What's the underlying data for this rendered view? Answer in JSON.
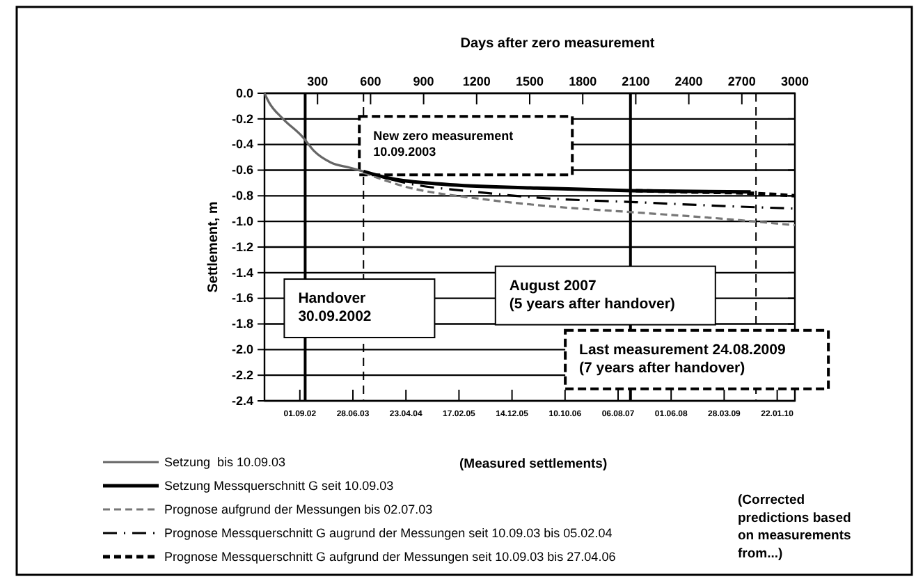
{
  "chart_data": {
    "type": "line",
    "xlabel": "Days after zero measurement",
    "ylabel": "Settlement, m",
    "xlim": [
      0,
      3000
    ],
    "x2lim": [
      "2002-02-13",
      "2010-05-02"
    ],
    "xticks": [
      300,
      600,
      900,
      1200,
      1500,
      1800,
      2100,
      2400,
      2700,
      3000
    ],
    "x2ticks": [
      {
        "value": "2002-09-01",
        "label": "01.09.02"
      },
      {
        "value": "2003-06-28",
        "label": "28.06.03"
      },
      {
        "value": "2004-04-23",
        "label": "23.04.04"
      },
      {
        "value": "2005-02-17",
        "label": "17.02.05"
      },
      {
        "value": "2005-12-14",
        "label": "14.12.05"
      },
      {
        "value": "2006-10-10",
        "label": "10.10.06"
      },
      {
        "value": "2007-08-06",
        "label": "06.08.07"
      },
      {
        "value": "2008-06-01",
        "label": "01.06.08"
      },
      {
        "value": "2009-03-28",
        "label": "28.03.09"
      },
      {
        "value": "2010-01-22",
        "label": "22.01.10"
      }
    ],
    "ylim": [
      -2.4,
      0
    ],
    "yticks": [
      {
        "value": 0,
        "label": "0.0"
      },
      {
        "value": -0.2,
        "label": "-0.2"
      },
      {
        "value": -0.4,
        "label": "-0.4"
      },
      {
        "value": -0.6,
        "label": "-0.6"
      },
      {
        "value": -0.8,
        "label": "-0.8"
      },
      {
        "value": -1.0,
        "label": "-1.0"
      },
      {
        "value": -1.2,
        "label": "-1.2"
      },
      {
        "value": -1.4,
        "label": "-1.4"
      },
      {
        "value": -1.6,
        "label": "-1.6"
      },
      {
        "value": -1.8,
        "label": "-1.8"
      },
      {
        "value": -2.0,
        "label": "-2.0"
      },
      {
        "value": -2.2,
        "label": "-2.2"
      },
      {
        "value": -2.4,
        "label": "-2.4"
      }
    ],
    "grid": "y",
    "legend": "bottom",
    "marker": "none",
    "series": [
      {
        "name": "Setzung  bis 10.09.03",
        "color": "#666666",
        "line_style": "solid",
        "x": [
          0,
          25,
          105,
          215,
          280,
          375,
          480,
          560
        ],
        "values": [
          0,
          -0.07,
          -0.2,
          -0.34,
          -0.45,
          -0.54,
          -0.58,
          -0.61
        ]
      },
      {
        "name": "Setzung Messquerschnitt G seit 10.09.03",
        "color": "#000000",
        "line_style": "solid",
        "x": [
          560,
          694,
          1014,
          1540,
          2075,
          2750
        ],
        "values": [
          -0.61,
          -0.66,
          -0.71,
          -0.74,
          -0.76,
          -0.77
        ]
      },
      {
        "name": "Prognose aufgrund der Messungen bis 02.07.03",
        "color": "#777777",
        "line_style": "dashed",
        "x": [
          560,
          800,
          1200,
          1600,
          2100,
          2600,
          3000
        ],
        "values": [
          -0.62,
          -0.73,
          -0.82,
          -0.88,
          -0.93,
          -0.98,
          -1.03
        ]
      },
      {
        "name": "Prognose Messquerschnitt G augrund der Messungen seit 10.09.03 bis 05.02.04",
        "color": "#000000",
        "line_style": "dash-dot",
        "x": [
          560,
          800,
          1200,
          1600,
          2100,
          2600,
          3000
        ],
        "values": [
          -0.61,
          -0.7,
          -0.77,
          -0.82,
          -0.85,
          -0.88,
          -0.9
        ]
      },
      {
        "name": "Prognose Messquerschnitt G aufgrund der Messungen seit 10.09.03 bis 27.04.06",
        "color": "#000000",
        "line_style": "dashed",
        "x": [
          2100,
          2400,
          2750,
          3000
        ],
        "values": [
          -0.76,
          -0.77,
          -0.78,
          -0.8
        ]
      }
    ],
    "ref_lines": [
      {
        "axis": "x",
        "value": 230,
        "label": "Handover\n30.09.2002",
        "line_style": "solid"
      },
      {
        "axis": "x",
        "value": 560,
        "label": "New zero measurement\n10.09.2003",
        "line_style": "dashed"
      },
      {
        "axis": "x",
        "value": 2070,
        "label": "August 2007\n(5 years after handover)",
        "line_style": "solid"
      },
      {
        "axis": "x",
        "value": 2780,
        "label": "Last measurement 24.08.2009\n(7 years after handover)",
        "line_style": "dashed"
      }
    ],
    "annotations": [
      "(Measured settlements)",
      "(Corrected\npredictions based\non measurements\nfrom...)"
    ]
  }
}
